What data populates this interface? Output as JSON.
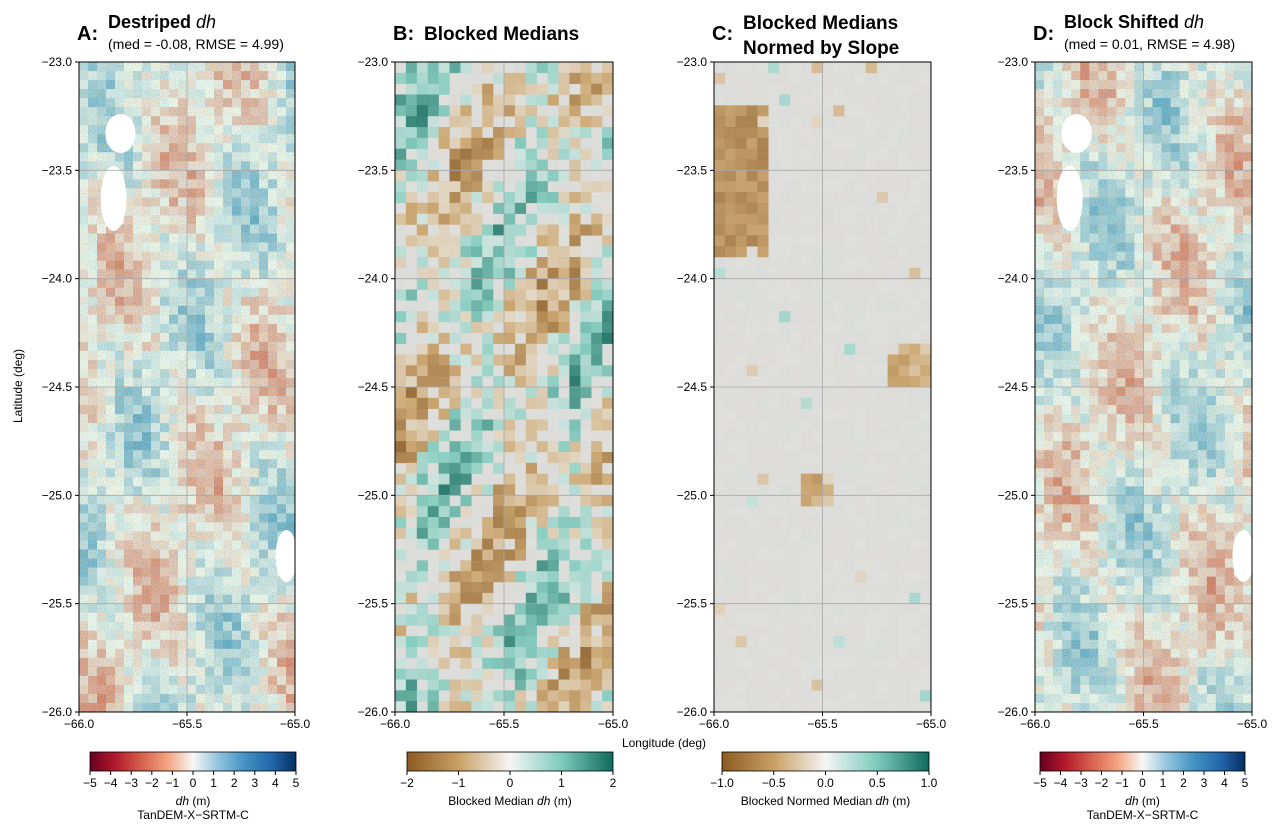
{
  "figure": {
    "shared_ylabel": "Latitude (deg)",
    "shared_xlabel": "Longitude (deg)"
  },
  "chart_data": [
    {
      "type": "heatmap",
      "panel_letter": "A:",
      "title_main": "Destriped ",
      "title_italic": "dh",
      "subtitle": "(med = -0.08, RMSE = 4.99)",
      "x_ticks": [
        "−66.0",
        "−65.5",
        "−65.0"
      ],
      "y_ticks": [
        "−23.0",
        "−23.5",
        "−24.0",
        "−24.5",
        "−25.0",
        "−25.5",
        "−26.0"
      ],
      "xlim": [
        -66.0,
        -65.0
      ],
      "ylim": [
        -26.0,
        -23.0
      ],
      "grid": true,
      "colormap": "RdBu",
      "colorbar": {
        "ticks": [
          "−5",
          "−4",
          "−3",
          "−2",
          "−1",
          "0",
          "1",
          "2",
          "3",
          "4",
          "5"
        ],
        "range": [
          -5,
          5
        ],
        "label_italic": "dh",
        "label_rest": " (m)",
        "label_line2": "TanDEM-X−SRTM-C"
      }
    },
    {
      "type": "heatmap",
      "panel_letter": "B:",
      "title_main": "Blocked Medians",
      "title_italic": "",
      "title_line2": "",
      "subtitle": "",
      "x_ticks": [
        "−66.0",
        "−65.5",
        "−65.0"
      ],
      "y_ticks": [
        "−23.0",
        "−23.5",
        "−24.0",
        "−24.5",
        "−25.0",
        "−25.5",
        "−26.0"
      ],
      "xlim": [
        -66.0,
        -65.0
      ],
      "ylim": [
        -26.0,
        -23.0
      ],
      "grid": true,
      "colormap": "BrBG",
      "colorbar": {
        "ticks": [
          "−2",
          "−1",
          "0",
          "1",
          "2"
        ],
        "range": [
          -2,
          2
        ],
        "label_pre": "Blocked Median ",
        "label_italic": "dh",
        "label_rest": " (m)"
      }
    },
    {
      "type": "heatmap",
      "panel_letter": "C:",
      "title_main": "Blocked Medians",
      "title_line2": "Normed by Slope",
      "x_ticks": [
        "−66.0",
        "−65.5",
        "−65.0"
      ],
      "y_ticks": [
        "−23.0",
        "−23.5",
        "−24.0",
        "−24.5",
        "−25.0",
        "−25.5",
        "−26.0"
      ],
      "xlim": [
        -66.0,
        -65.0
      ],
      "ylim": [
        -26.0,
        -23.0
      ],
      "grid": true,
      "colormap": "BrBG",
      "colorbar": {
        "ticks": [
          "−1.0",
          "−0.5",
          "0.0",
          "0.5",
          "1.0"
        ],
        "range": [
          -1,
          1
        ],
        "label_pre": "Blocked Normed Median ",
        "label_italic": "dh",
        "label_rest": " (m)"
      }
    },
    {
      "type": "heatmap",
      "panel_letter": "D:",
      "title_main": "Block Shifted ",
      "title_italic": "dh",
      "subtitle": "(med = 0.01, RMSE = 4.98)",
      "x_ticks": [
        "−66.0",
        "−65.5",
        "−65.0"
      ],
      "y_ticks": [
        "−23.0",
        "−23.5",
        "−24.0",
        "−24.5",
        "−25.0",
        "−25.5",
        "−26.0"
      ],
      "xlim": [
        -66.0,
        -65.0
      ],
      "ylim": [
        -26.0,
        -23.0
      ],
      "grid": true,
      "colormap": "RdBu",
      "colorbar": {
        "ticks": [
          "−5",
          "−4",
          "−3",
          "−2",
          "−1",
          "0",
          "1",
          "2",
          "3",
          "4",
          "5"
        ],
        "range": [
          -5,
          5
        ],
        "label_italic": "dh",
        "label_rest": " (m)",
        "label_line2": "TanDEM-X−SRTM-C"
      }
    }
  ]
}
